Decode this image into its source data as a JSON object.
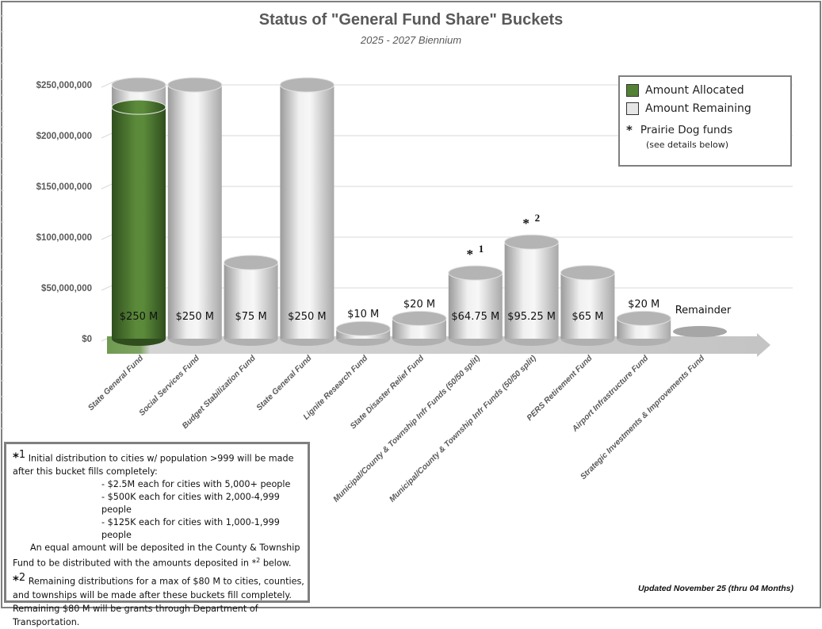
{
  "chart_data": {
    "type": "bar",
    "style": "3d-cylinder-stacked",
    "title": "Status of \"General Fund Share\" Buckets",
    "subtitle": "2025 - 2027 Biennium",
    "xlabel": "",
    "ylabel": "",
    "ylim": [
      0,
      250000000
    ],
    "yticks": [
      "$0",
      "$50,000,000",
      "$100,000,000",
      "$150,000,000",
      "$200,000,000",
      "$250,000,000"
    ],
    "grid": true,
    "legend_position": "top-right",
    "categories": [
      "State General Fund",
      "Social Services Fund",
      "Budget Stabilization Fund",
      "State General Fund",
      "Lignite Research Fund",
      "State Disaster Relief Fund",
      "Municipal/County & Township Infr Funds (50/50 split)",
      "Municipal/County & Township Infr Funds (50/50 split)",
      "PERS Retirement Fund",
      "Airport Infrastructure Fund",
      "Strategic Investments & Improvements Fund"
    ],
    "series": [
      {
        "name": "Amount Allocated",
        "color": "#548235",
        "values": [
          228000000,
          0,
          0,
          0,
          0,
          0,
          0,
          0,
          0,
          0,
          0
        ]
      },
      {
        "name": "Amount Remaining",
        "color": "#e7e6e6",
        "values": [
          22000000,
          250000000,
          75000000,
          250000000,
          10000000,
          20000000,
          64750000,
          95250000,
          65000000,
          20000000,
          0
        ]
      }
    ],
    "data_labels": [
      "$250 M",
      "$250 M",
      "$75 M",
      "$250 M",
      "$10 M",
      "$20 M",
      "$64.75 M",
      "$95.25 M",
      "$65 M",
      "$20 M",
      "Remainder"
    ],
    "markers": [
      "",
      "",
      "",
      "",
      "",
      "",
      "*1",
      "*2",
      "",
      "",
      ""
    ]
  },
  "legend": {
    "allocated": "Amount Allocated",
    "remaining": "Amount Remaining",
    "prairie": "Prairie Dog funds",
    "prairie_sub": "(see details below)",
    "star": "*"
  },
  "notes": {
    "n1_mark": "*",
    "n1_sup": "1",
    "n1_text": "Initial distribution to cities w/ population >999 will be made after this bucket fills completely:",
    "n1_items": [
      "- $2.5M each for cities with 5,000+ people",
      "- $500K each for cities with 2,000-4,999 people",
      "- $125K each for cities with 1,000-1,999 people"
    ],
    "n1_tail_a": "An equal amount will be deposited in the County & Township Fund to be distributed with the amounts deposited in",
    "n1_tail_ref": "*",
    "n1_tail_sup": "2",
    "n1_tail_b": "below.",
    "n2_mark": "*",
    "n2_sup": "2",
    "n2_text": "Remaining distributions for a max of $80 M to cities, counties, and townships will be made after these buckets fill completely. Remaining $80 M will be grants through Department of Transportation."
  },
  "updated": "Updated November 25 (thru 04 Months)"
}
